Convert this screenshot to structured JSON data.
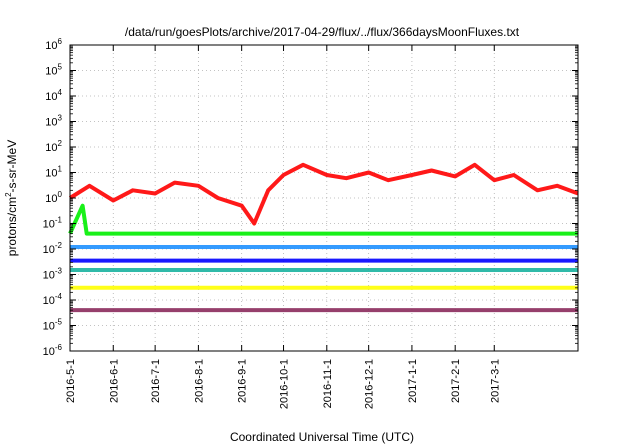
{
  "chart_data": {
    "type": "line",
    "title": "/data/run/goesPlots/archive/2017-04-29/flux/../flux/366daysMoonFluxes.txt",
    "xlabel": "Coordinated Universal Time (UTC)",
    "ylabel": {
      "base": "protons/cm",
      "exp": "2",
      "rest": "-s-sr-MeV"
    },
    "y_scale": "log",
    "ylim": [
      1e-06,
      1000000.0
    ],
    "xlim": [
      "2016-05-01",
      "2017-04-30"
    ],
    "grid": true,
    "legend": "none",
    "x_ticks": [
      "2016-5-1",
      "2016-6-1",
      "2016-7-1",
      "2016-8-1",
      "2016-9-1",
      "2016-10-1",
      "2016-11-1",
      "2016-12-1",
      "2017-1-1",
      "2017-2-1",
      "2017-3-1"
    ],
    "y_ticks": [
      {
        "value": 1e-06,
        "base": "10",
        "exp": "-6"
      },
      {
        "value": 1e-05,
        "base": "10",
        "exp": "-5"
      },
      {
        "value": 0.0001,
        "base": "10",
        "exp": "-4"
      },
      {
        "value": 0.001,
        "base": "10",
        "exp": "-3"
      },
      {
        "value": 0.01,
        "base": "10",
        "exp": "-2"
      },
      {
        "value": 0.1,
        "base": "10",
        "exp": "-1"
      },
      {
        "value": 1,
        "base": "10",
        "exp": "0"
      },
      {
        "value": 10.0,
        "base": "10",
        "exp": "1"
      },
      {
        "value": 100.0,
        "base": "10",
        "exp": "2"
      },
      {
        "value": 1000.0,
        "base": "10",
        "exp": "3"
      },
      {
        "value": 10000.0,
        "base": "10",
        "exp": "4"
      },
      {
        "value": 100000.0,
        "base": "10",
        "exp": "5"
      },
      {
        "value": 1000000.0,
        "base": "10",
        "exp": "6"
      }
    ],
    "series": [
      {
        "color": "#8b2a5c",
        "points": [
          [
            "2016-05-01",
            4e-05
          ],
          [
            "2016-06-01",
            4e-05
          ],
          [
            "2016-07-01",
            4e-05
          ],
          [
            "2016-08-01",
            4e-05
          ],
          [
            "2016-09-01",
            4e-05
          ],
          [
            "2016-10-01",
            4e-05
          ],
          [
            "2016-11-01",
            4e-05
          ],
          [
            "2016-12-01",
            4e-05
          ],
          [
            "2017-01-01",
            4e-05
          ],
          [
            "2017-02-01",
            4e-05
          ],
          [
            "2017-03-01",
            4e-05
          ],
          [
            "2017-04-30",
            4e-05
          ]
        ]
      },
      {
        "color": "#ffff00",
        "points": [
          [
            "2016-05-01",
            0.0003
          ],
          [
            "2016-06-01",
            0.0003
          ],
          [
            "2016-07-01",
            0.0003
          ],
          [
            "2016-08-01",
            0.0003
          ],
          [
            "2016-09-01",
            0.0003
          ],
          [
            "2016-10-01",
            0.0003
          ],
          [
            "2016-11-01",
            0.0003
          ],
          [
            "2016-12-01",
            0.0003
          ],
          [
            "2017-01-01",
            0.0003
          ],
          [
            "2017-02-01",
            0.0003
          ],
          [
            "2017-03-01",
            0.0003
          ],
          [
            "2017-04-30",
            0.0003
          ]
        ]
      },
      {
        "color": "#1ab3a0",
        "points": [
          [
            "2016-05-01",
            0.0015
          ],
          [
            "2016-06-01",
            0.0015
          ],
          [
            "2016-07-01",
            0.0015
          ],
          [
            "2016-08-01",
            0.0015
          ],
          [
            "2016-09-01",
            0.0015
          ],
          [
            "2016-10-01",
            0.0015
          ],
          [
            "2016-11-01",
            0.0015
          ],
          [
            "2016-12-01",
            0.0015
          ],
          [
            "2017-01-01",
            0.0015
          ],
          [
            "2017-02-01",
            0.0015
          ],
          [
            "2017-03-01",
            0.0015
          ],
          [
            "2017-04-30",
            0.0015
          ]
        ]
      },
      {
        "color": "#0000ff",
        "points": [
          [
            "2016-05-01",
            0.0035
          ],
          [
            "2016-06-01",
            0.0035
          ],
          [
            "2016-07-01",
            0.0035
          ],
          [
            "2016-08-01",
            0.0035
          ],
          [
            "2016-09-01",
            0.0035
          ],
          [
            "2016-10-01",
            0.0035
          ],
          [
            "2016-11-01",
            0.0035
          ],
          [
            "2016-12-01",
            0.0035
          ],
          [
            "2017-01-01",
            0.0035
          ],
          [
            "2017-02-01",
            0.0035
          ],
          [
            "2017-03-01",
            0.0035
          ],
          [
            "2017-04-30",
            0.0035
          ]
        ]
      },
      {
        "color": "#1e90ff",
        "points": [
          [
            "2016-05-01",
            0.012
          ],
          [
            "2016-06-01",
            0.012
          ],
          [
            "2016-07-01",
            0.012
          ],
          [
            "2016-08-01",
            0.012
          ],
          [
            "2016-09-01",
            0.012
          ],
          [
            "2016-10-01",
            0.012
          ],
          [
            "2016-11-01",
            0.012
          ],
          [
            "2016-12-01",
            0.012
          ],
          [
            "2017-01-01",
            0.012
          ],
          [
            "2017-02-01",
            0.012
          ],
          [
            "2017-03-01",
            0.012
          ],
          [
            "2017-04-30",
            0.012
          ]
        ]
      },
      {
        "color": "#00ee00",
        "points": [
          [
            "2016-05-01",
            0.04
          ],
          [
            "2016-05-10",
            0.5
          ],
          [
            "2016-05-13",
            0.04
          ],
          [
            "2016-06-01",
            0.04
          ],
          [
            "2016-07-01",
            0.04
          ],
          [
            "2016-08-01",
            0.04
          ],
          [
            "2016-09-01",
            0.04
          ],
          [
            "2016-10-01",
            0.04
          ],
          [
            "2016-11-01",
            0.04
          ],
          [
            "2016-12-01",
            0.04
          ],
          [
            "2017-01-01",
            0.04
          ],
          [
            "2017-02-01",
            0.04
          ],
          [
            "2017-03-01",
            0.04
          ],
          [
            "2017-04-30",
            0.04
          ]
        ]
      },
      {
        "color": "#ff0000",
        "points": [
          [
            "2016-05-01",
            1
          ],
          [
            "2016-05-15",
            3
          ],
          [
            "2016-06-01",
            0.8
          ],
          [
            "2016-06-15",
            2
          ],
          [
            "2016-07-01",
            1.5
          ],
          [
            "2016-07-15",
            4
          ],
          [
            "2016-08-01",
            3
          ],
          [
            "2016-08-15",
            1
          ],
          [
            "2016-09-01",
            0.5
          ],
          [
            "2016-09-10",
            0.1
          ],
          [
            "2016-09-20",
            2
          ],
          [
            "2016-10-01",
            8
          ],
          [
            "2016-10-15",
            20
          ],
          [
            "2016-11-01",
            8
          ],
          [
            "2016-11-15",
            6
          ],
          [
            "2016-12-01",
            10
          ],
          [
            "2016-12-15",
            5
          ],
          [
            "2017-01-01",
            8
          ],
          [
            "2017-01-15",
            12
          ],
          [
            "2017-02-01",
            7
          ],
          [
            "2017-02-15",
            20
          ],
          [
            "2017-03-01",
            5
          ],
          [
            "2017-03-15",
            8
          ],
          [
            "2017-04-01",
            2
          ],
          [
            "2017-04-15",
            3
          ],
          [
            "2017-04-30",
            1.5
          ]
        ]
      }
    ]
  }
}
